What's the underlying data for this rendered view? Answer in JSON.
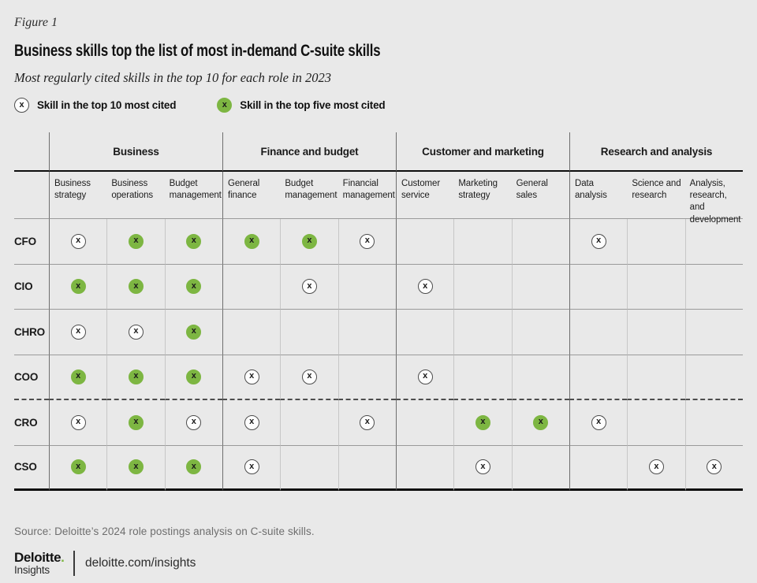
{
  "figure_label": "Figure 1",
  "title": "Business skills top the list of most in-demand C-suite skills",
  "subtitle": "Most regularly cited skills in the top 10 for each role in 2023",
  "colors": {
    "top5_green": "#7db642",
    "background": "#e9e9e9"
  },
  "chart_data": {
    "type": "table",
    "title": "Business skills top the list of most in-demand C-suite skills",
    "subtitle": "Most regularly cited skills in the top 10 for each role in 2023",
    "mark_glyph": "x",
    "legend": {
      "top10": "Skill in the top 10 most cited",
      "top5": "Skill in the top five most cited"
    },
    "column_groups": [
      {
        "label": "Business",
        "columns": [
          "Business strategy",
          "Business operations",
          "Budget management"
        ]
      },
      {
        "label": "Finance and budget",
        "columns": [
          "General finance",
          "Budget management",
          "Financial management"
        ]
      },
      {
        "label": "Customer and marketing",
        "columns": [
          "Customer service",
          "Marketing strategy",
          "General sales"
        ]
      },
      {
        "label": "Research and analysis",
        "columns": [
          "Data analysis",
          "Science and research",
          "Analysis, research, and development"
        ]
      }
    ],
    "rows": [
      {
        "role": "CFO",
        "marks": [
          "top10",
          "top5",
          "top5",
          "top5",
          "top5",
          "top10",
          "",
          "",
          "",
          "top10",
          "",
          ""
        ]
      },
      {
        "role": "CIO",
        "marks": [
          "top5",
          "top5",
          "top5",
          "",
          "top10",
          "",
          "top10",
          "",
          "",
          "",
          "",
          ""
        ]
      },
      {
        "role": "CHRO",
        "marks": [
          "top10",
          "top10",
          "top5",
          "",
          "",
          "",
          "",
          "",
          "",
          "",
          "",
          ""
        ]
      },
      {
        "role": "COO",
        "marks": [
          "top5",
          "top5",
          "top5",
          "top10",
          "top10",
          "",
          "top10",
          "",
          "",
          "",
          "",
          ""
        ],
        "divider_after": "dashed"
      },
      {
        "role": "CRO",
        "marks": [
          "top10",
          "top5",
          "top10",
          "top10",
          "",
          "top10",
          "",
          "top5",
          "top5",
          "top10",
          "",
          ""
        ]
      },
      {
        "role": "CSO",
        "marks": [
          "top5",
          "top5",
          "top5",
          "top10",
          "",
          "",
          "",
          "top10",
          "",
          "",
          "top10",
          "top10"
        ]
      }
    ]
  },
  "source": "Source: Deloitte’s 2024 role postings analysis on C-suite skills.",
  "footer": {
    "brand_name": "Deloitte",
    "brand_dot": ".",
    "brand_sub": "Insights",
    "site": "deloitte.com/insights"
  }
}
